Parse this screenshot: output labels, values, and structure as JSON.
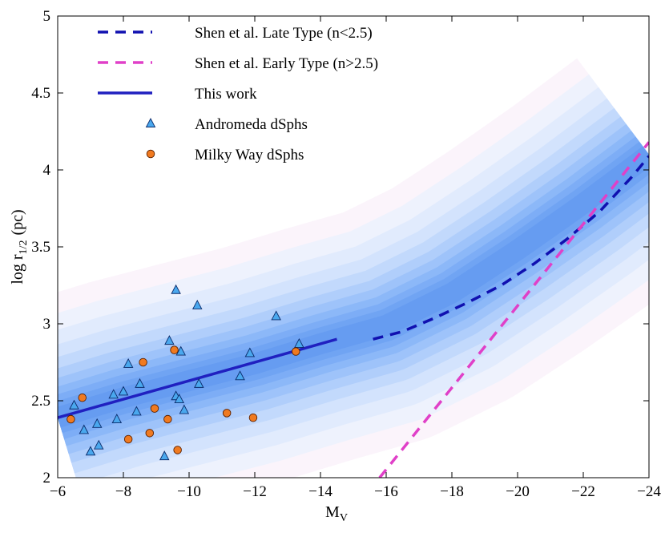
{
  "chart_data": {
    "type": "scatter",
    "xlabel": "M",
    "xlabel_sub": "V",
    "ylabel": "log r",
    "ylabel_sub": "1/2",
    "ylabel_unit": "(pc)",
    "xlim": [
      -6,
      -24
    ],
    "ylim": [
      2,
      5
    ],
    "xticks": [
      -6,
      -8,
      -10,
      -12,
      -14,
      -16,
      -18,
      -20,
      -22,
      -24
    ],
    "xtick_labels": [
      "−6",
      "−8",
      "−10",
      "−12",
      "−14",
      "−16",
      "−18",
      "−20",
      "−22",
      "−24"
    ],
    "yticks": [
      2,
      2.5,
      3,
      3.5,
      4,
      4.5,
      5
    ],
    "ytick_labels": [
      "2",
      "2.5",
      "3",
      "3.5",
      "4",
      "4.5",
      "5"
    ],
    "grid": false,
    "legend_position": "top-left",
    "background_band": {
      "description_free": true,
      "center_x": [
        -6,
        -8,
        -10,
        -12,
        -14,
        -16,
        -18,
        -20,
        -22,
        -24
      ],
      "center_y": [
        2.39,
        2.52,
        2.63,
        2.74,
        2.87,
        2.99,
        3.2,
        3.48,
        3.78,
        4.1
      ]
    },
    "series": [
      {
        "name": "Shen et al. Late Type (n<2.5)",
        "kind": "line",
        "style": "dashed",
        "color": "#1010b0",
        "x": [
          -15.6,
          -16.5,
          -17.5,
          -18.5,
          -19.5,
          -20.5,
          -21.5,
          -22.5,
          -23.5,
          -24
        ],
        "y": [
          2.9,
          2.95,
          3.04,
          3.14,
          3.25,
          3.39,
          3.55,
          3.73,
          3.96,
          4.09
        ]
      },
      {
        "name": "Shen et al. Early Type (n>2.5)",
        "kind": "line",
        "style": "dashed",
        "color": "#e040c8",
        "x": [
          -15.8,
          -24
        ],
        "y": [
          2,
          4.18
        ]
      },
      {
        "name": "This work",
        "kind": "line",
        "style": "solid",
        "color": "#2020c0",
        "x": [
          -6,
          -14.5
        ],
        "y": [
          2.39,
          2.9
        ]
      },
      {
        "name": "Andromeda dSphs",
        "kind": "scatter",
        "marker": "triangle",
        "color": "#4aa8ee",
        "x": [
          -6.5,
          -6.8,
          -7.0,
          -7.2,
          -7.25,
          -7.7,
          -7.8,
          -8.0,
          -8.15,
          -8.4,
          -8.5,
          -9.25,
          -9.4,
          -9.6,
          -9.6,
          -9.7,
          -9.75,
          -9.85,
          -10.25,
          -10.3,
          -11.55,
          -11.85,
          -12.65,
          -13.35
        ],
        "y": [
          2.47,
          2.31,
          2.17,
          2.35,
          2.21,
          2.54,
          2.38,
          2.56,
          2.74,
          2.43,
          2.61,
          2.14,
          2.89,
          3.22,
          2.53,
          2.51,
          2.82,
          2.44,
          3.12,
          2.61,
          2.66,
          2.81,
          3.05,
          2.87
        ]
      },
      {
        "name": "Milky Way dSphs",
        "kind": "scatter",
        "marker": "circle",
        "color": "#f07a20",
        "x": [
          -6.4,
          -6.75,
          -8.15,
          -8.6,
          -8.8,
          -8.95,
          -9.35,
          -9.55,
          -9.65,
          -11.15,
          -11.95,
          -13.25
        ],
        "y": [
          2.38,
          2.52,
          2.25,
          2.75,
          2.29,
          2.45,
          2.38,
          2.83,
          2.18,
          2.42,
          2.39,
          2.82
        ]
      }
    ]
  }
}
